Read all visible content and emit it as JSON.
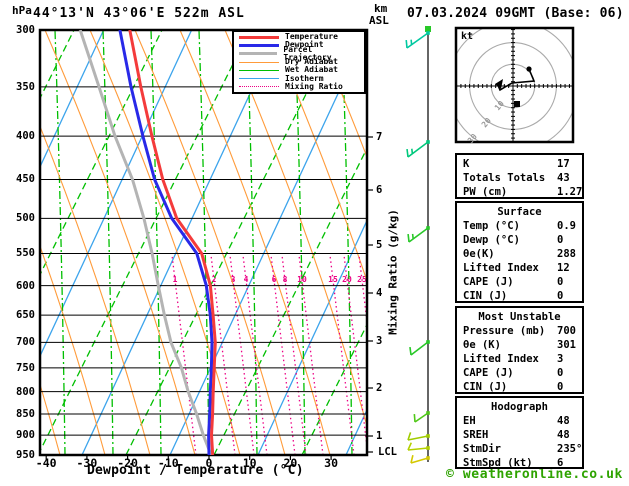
{
  "header": {
    "pressure_unit": "hPa",
    "title": "44°13'N 43°06'E 522m ASL",
    "datetime": "07.03.2024 09GMT (Base: 06)",
    "km_label": "km",
    "asl_label": "ASL"
  },
  "legend": {
    "items": [
      {
        "label": "Temperature",
        "color": "#f43b3b",
        "width": 3,
        "dash": "solid"
      },
      {
        "label": "Dewpoint",
        "color": "#2929e8",
        "width": 3,
        "dash": "solid"
      },
      {
        "label": "Parcel Trajectory",
        "color": "#b4b4b4",
        "width": 3,
        "dash": "solid"
      },
      {
        "label": "Dry Adiabat",
        "color": "#ff9b3a",
        "width": 1.5,
        "dash": "solid"
      },
      {
        "label": "Wet Adiabat",
        "color": "#00bf00",
        "width": 1.5,
        "dash": "solid"
      },
      {
        "label": "Isotherm",
        "color": "#3ca4ec",
        "width": 1.5,
        "dash": "solid"
      },
      {
        "label": "Mixing Ratio",
        "color": "#ec0084",
        "width": 1.5,
        "dash": "dotted"
      }
    ]
  },
  "axes": {
    "pressure_ticks": [
      300,
      350,
      400,
      450,
      500,
      550,
      600,
      650,
      700,
      750,
      800,
      850,
      900,
      950
    ],
    "temp_ticks": [
      -40,
      -30,
      -20,
      -10,
      0,
      10,
      20,
      30
    ],
    "xlabel": "Dewpoint / Temperature (°C)",
    "km_ticks": [
      7,
      6,
      5,
      4,
      3,
      2,
      1
    ],
    "lcl_label": "LCL",
    "mixing_axis_label": "Mixing Ratio (g/kg)",
    "mixing_values": [
      1,
      2,
      3,
      4,
      6,
      8,
      10,
      15,
      20,
      25
    ]
  },
  "hodograph": {
    "unit": "kt",
    "ring_labels": [
      "10",
      "20",
      "30"
    ]
  },
  "table": {
    "sections": [
      {
        "title": "",
        "rows": [
          [
            "K",
            "17"
          ],
          [
            "Totals Totals",
            "43"
          ],
          [
            "PW (cm)",
            "1.27"
          ]
        ]
      },
      {
        "title": "Surface",
        "rows": [
          [
            "Temp (°C)",
            "0.9"
          ],
          [
            "Dewp (°C)",
            "0"
          ],
          [
            "θe(K)",
            "288"
          ],
          [
            "Lifted Index",
            "12"
          ],
          [
            "CAPE (J)",
            "0"
          ],
          [
            "CIN (J)",
            "0"
          ]
        ]
      },
      {
        "title": "Most Unstable",
        "rows": [
          [
            "Pressure (mb)",
            "700"
          ],
          [
            "θe (K)",
            "301"
          ],
          [
            "Lifted Index",
            "3"
          ],
          [
            "CAPE (J)",
            "0"
          ],
          [
            "CIN (J)",
            "0"
          ]
        ]
      },
      {
        "title": "Hodograph",
        "rows": [
          [
            "EH",
            "48"
          ],
          [
            "SREH",
            "48"
          ],
          [
            "StmDir",
            "235°"
          ],
          [
            "StmSpd (kt)",
            "6"
          ]
        ]
      }
    ]
  },
  "footer": {
    "credit": "© weatheronline.co.uk"
  },
  "chart_data": {
    "type": "line",
    "title": "Skew-T log-P sounding 44°13'N 43°06'E 522m ASL 07.03.2024 09GMT",
    "x_axis": "Dewpoint / Temperature (°C)",
    "y_axis": "Pressure (hPa)",
    "xlim": [
      -40,
      38
    ],
    "pressure_range": [
      300,
      950
    ],
    "km_asl_range": [
      1,
      7
    ],
    "series_names": [
      "temperature",
      "dewpoint",
      "parcel_trajectory"
    ],
    "profile": [
      {
        "p": 300,
        "t": -47.0,
        "td": -49.4,
        "tp": -59.1
      },
      {
        "p": 350,
        "t": -40.6,
        "td": -43.0,
        "tp": -50.8
      },
      {
        "p": 400,
        "t": -34.7,
        "td": -36.9,
        "tp": -43.7
      },
      {
        "p": 450,
        "t": -29.2,
        "td": -31.2,
        "tp": -36.6
      },
      {
        "p": 500,
        "t": -23.3,
        "td": -24.5,
        "tp": -31.3
      },
      {
        "p": 550,
        "t": -14.9,
        "td": -16.1,
        "tp": -27.0
      },
      {
        "p": 600,
        "t": -10.7,
        "td": -11.7,
        "tp": -23.4
      },
      {
        "p": 650,
        "t": -8.1,
        "td": -8.8,
        "tp": -20.0
      },
      {
        "p": 700,
        "t": -5.8,
        "td": -6.6,
        "tp": -16.6
      },
      {
        "p": 750,
        "t": -4.4,
        "td": -5.1,
        "tp": -12.4
      },
      {
        "p": 800,
        "t": -3.1,
        "td": -3.8,
        "tp": -9.2
      },
      {
        "p": 850,
        "t": -1.8,
        "td": -2.5,
        "tp": -5.7
      },
      {
        "p": 900,
        "t": -0.7,
        "td": -1.4,
        "tp": -2.7
      },
      {
        "p": 950,
        "t": 0.9,
        "td": 0.0,
        "tp": 0.5
      }
    ],
    "wind_barbs": [
      {
        "y": 33,
        "color": "#00c8a0",
        "dx": -21,
        "dy": 15,
        "ticks": 2
      },
      {
        "y": 142,
        "color": "#00c87c",
        "dx": -20,
        "dy": 15,
        "ticks": 2
      },
      {
        "y": 228,
        "color": "#28c828",
        "dx": -19,
        "dy": 14,
        "ticks": 2
      },
      {
        "y": 342,
        "color": "#28c828",
        "dx": -17,
        "dy": 13,
        "ticks": 1
      },
      {
        "y": 413,
        "color": "#50c818",
        "dx": -13,
        "dy": 9,
        "ticks": 1
      },
      {
        "y": 436,
        "color": "#a0cc00",
        "dx": -20,
        "dy": 4,
        "ticks": 1
      },
      {
        "y": 448,
        "color": "#b4d000",
        "dx": -20,
        "dy": 2,
        "ticks": 1
      },
      {
        "y": 458,
        "color": "#d4c800",
        "dx": -17,
        "dy": 5,
        "ticks": 1
      }
    ],
    "hodograph_rings_kt": [
      10,
      20,
      30
    ],
    "hodograph_trace": [
      [
        529,
        69
      ],
      [
        534,
        81
      ],
      [
        512,
        83
      ],
      [
        500,
        90
      ],
      [
        497,
        83
      ]
    ],
    "hodograph_dot": [
      529,
      69
    ],
    "hodograph_square": [
      514,
      101
    ]
  }
}
